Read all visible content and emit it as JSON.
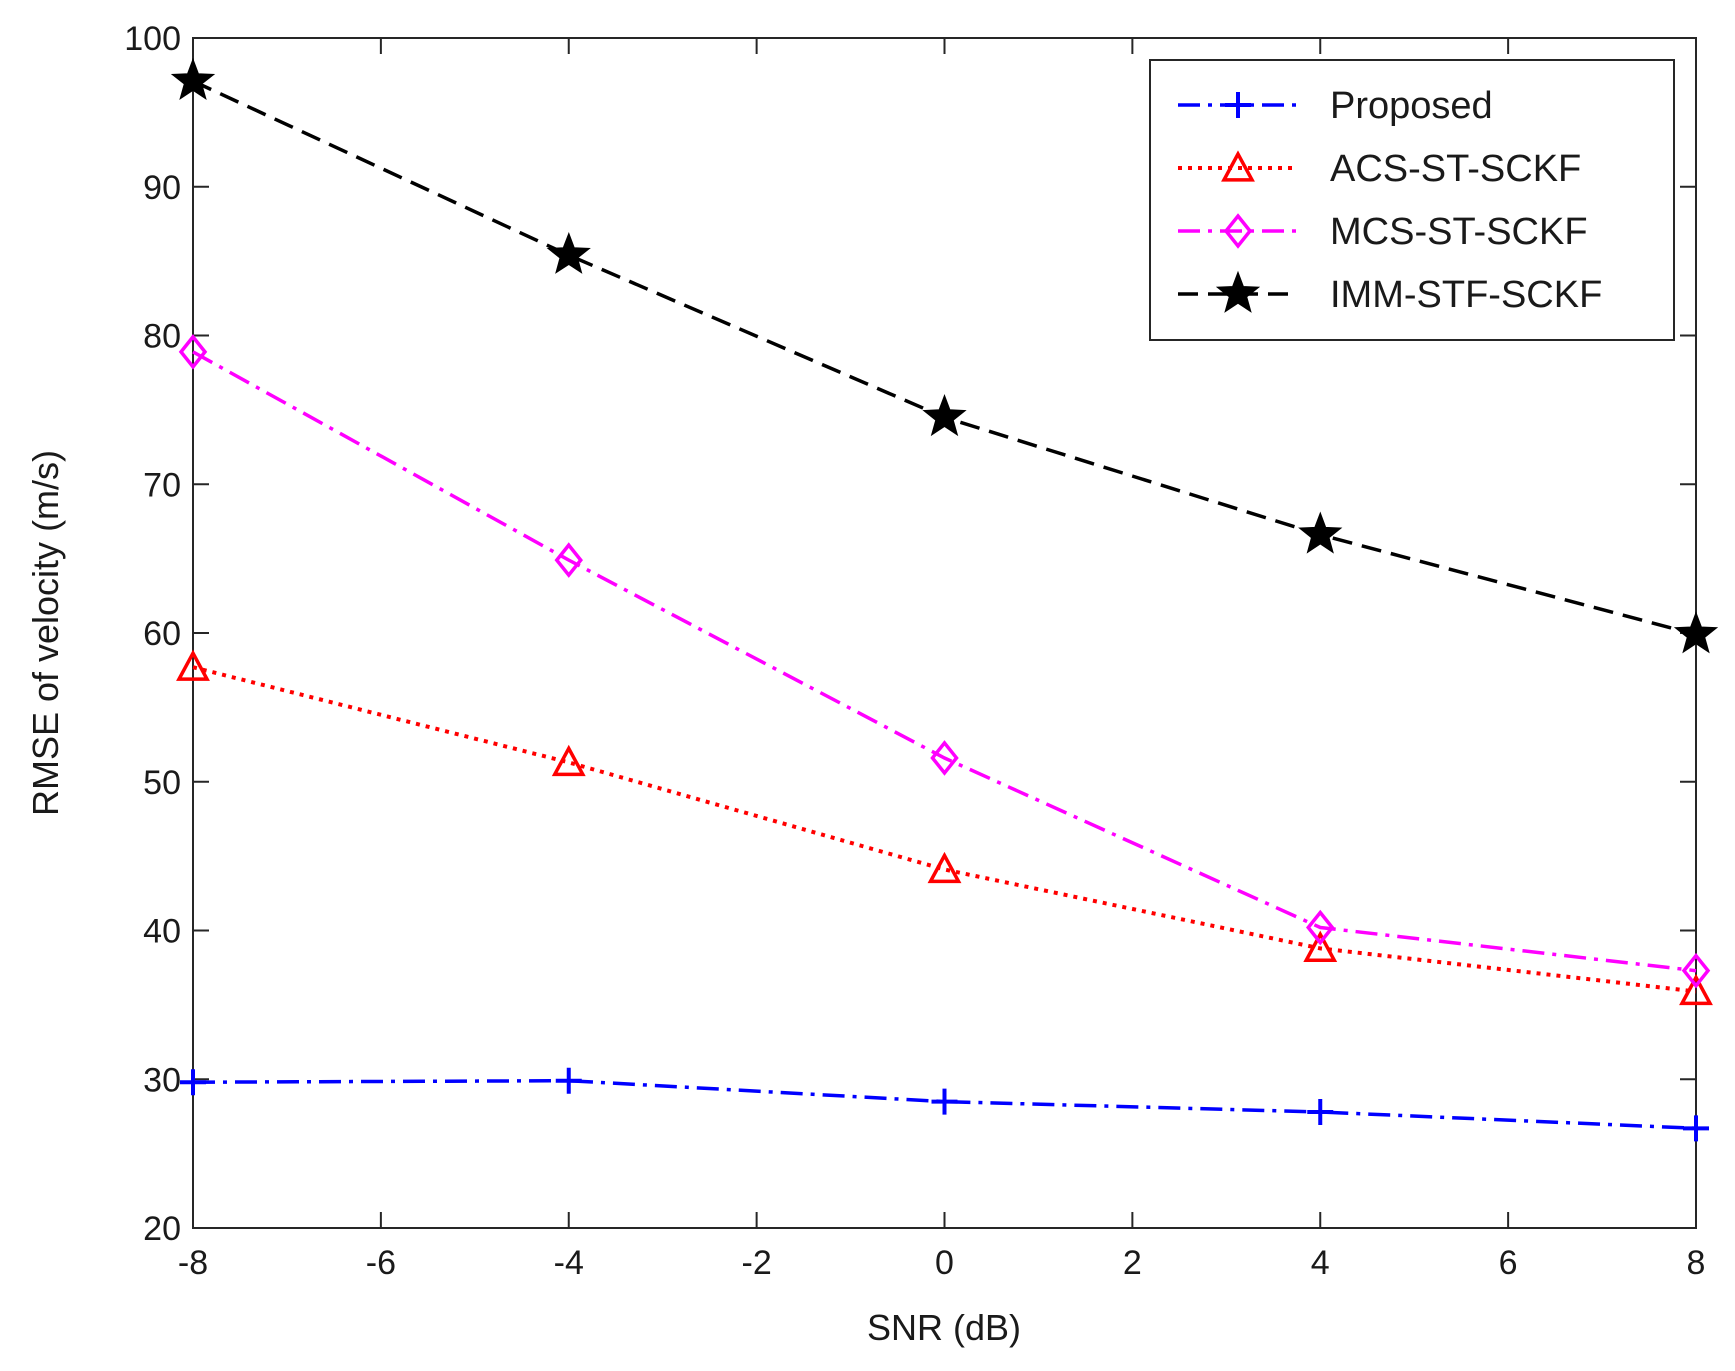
{
  "chart_data": {
    "type": "line",
    "title": "",
    "xlabel": "SNR (dB)",
    "ylabel": "RMSE of velocity (m/s)",
    "xlim": [
      -8,
      8
    ],
    "ylim": [
      20,
      100
    ],
    "xticks": [
      -8,
      -6,
      -4,
      -2,
      0,
      2,
      4,
      6,
      8
    ],
    "yticks": [
      20,
      30,
      40,
      50,
      60,
      70,
      80,
      90,
      100
    ],
    "x": [
      -8,
      -4,
      0,
      4,
      8
    ],
    "legend_position": "top-right",
    "grid": false,
    "series": [
      {
        "name": "Proposed",
        "values": [
          29.8,
          29.9,
          28.5,
          27.8,
          26.7
        ],
        "color": "#0000ff",
        "line_style": "dash-dot",
        "marker": "plus"
      },
      {
        "name": "ACS-ST-SCKF",
        "values": [
          57.7,
          51.3,
          44.1,
          38.8,
          35.9
        ],
        "color": "#ff0000",
        "line_style": "dotted",
        "marker": "triangle"
      },
      {
        "name": "MCS-ST-SCKF",
        "values": [
          78.9,
          64.9,
          51.6,
          40.2,
          37.3
        ],
        "color": "#ff00ff",
        "line_style": "dash-dot",
        "marker": "diamond"
      },
      {
        "name": "IMM-STF-SCKF",
        "values": [
          97.1,
          85.4,
          74.5,
          66.6,
          59.9
        ],
        "color": "#000000",
        "line_style": "dashed",
        "marker": "star"
      }
    ]
  }
}
